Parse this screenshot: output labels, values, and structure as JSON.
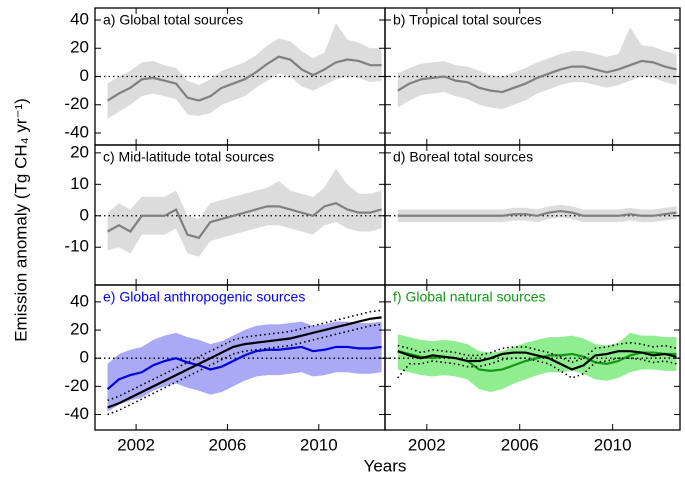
{
  "xlabel": "Years",
  "ylabel": "Emission anomaly (Tg CH₄ yr⁻¹)",
  "chart_data": [
    {
      "type": "line",
      "title": "a) Global total sources",
      "title_color": "#000000",
      "zero_line": true,
      "show_ytick_labels": true,
      "show_xtick_labels": false,
      "xlim": [
        2000.2,
        2012.9
      ],
      "xticks": [
        2002,
        2006,
        2010
      ],
      "ylim": [
        -48.5,
        48.5
      ],
      "yticks": [
        -40,
        -20,
        0,
        20,
        40
      ],
      "x": [
        2000.75,
        2001.25,
        2001.75,
        2002.25,
        2002.75,
        2003.25,
        2003.75,
        2004.25,
        2004.75,
        2005.25,
        2005.75,
        2006.25,
        2006.75,
        2007.25,
        2007.75,
        2008.25,
        2008.75,
        2009.25,
        2009.75,
        2010.25,
        2010.75,
        2011.25,
        2011.75,
        2012.25,
        2012.75
      ],
      "series": [
        {
          "color": "#808080",
          "band_color": "#dcdcdc",
          "values": [
            -17,
            -12,
            -8,
            -2,
            -1,
            -3,
            -5,
            -15,
            -17,
            -14,
            -8,
            -5,
            -2,
            3,
            9,
            14,
            12,
            5,
            1,
            5,
            10,
            12,
            11,
            8,
            8
          ],
          "lower": [
            -30,
            -25,
            -20,
            -14,
            -12,
            -14,
            -16,
            -27,
            -28,
            -26,
            -20,
            -17,
            -14,
            -8,
            -3,
            2,
            0,
            -7,
            -10,
            -6,
            -2,
            0,
            -1,
            -4,
            -3
          ],
          "upper": [
            -5,
            0,
            4,
            10,
            11,
            8,
            6,
            -3,
            -6,
            -2,
            4,
            7,
            10,
            15,
            22,
            27,
            25,
            18,
            13,
            17,
            38,
            26,
            24,
            20,
            20
          ]
        }
      ]
    },
    {
      "type": "line",
      "title": "b) Tropical total sources",
      "title_color": "#000000",
      "zero_line": true,
      "show_ytick_labels": false,
      "show_xtick_labels": false,
      "xlim": [
        2000.2,
        2012.9
      ],
      "xticks": [
        2002,
        2006,
        2010
      ],
      "ylim": [
        -48.5,
        48.5
      ],
      "yticks": [
        -40,
        -20,
        0,
        20,
        40
      ],
      "x": [
        2000.75,
        2001.25,
        2001.75,
        2002.25,
        2002.75,
        2003.25,
        2003.75,
        2004.25,
        2004.75,
        2005.25,
        2005.75,
        2006.25,
        2006.75,
        2007.25,
        2007.75,
        2008.25,
        2008.75,
        2009.25,
        2009.75,
        2010.25,
        2010.75,
        2011.25,
        2011.75,
        2012.25,
        2012.75
      ],
      "series": [
        {
          "color": "#808080",
          "band_color": "#dcdcdc",
          "values": [
            -10,
            -5,
            -2,
            -1,
            0,
            -3,
            -4,
            -8,
            -10,
            -11,
            -8,
            -5,
            -1,
            2,
            5,
            7,
            7,
            5,
            3,
            5,
            8,
            11,
            10,
            7,
            5
          ],
          "lower": [
            -22,
            -17,
            -13,
            -12,
            -11,
            -14,
            -16,
            -20,
            -22,
            -23,
            -20,
            -17,
            -12,
            -9,
            -6,
            -4,
            -4,
            -6,
            -8,
            -6,
            -3,
            0,
            -1,
            -4,
            -6
          ],
          "upper": [
            2,
            6,
            9,
            10,
            11,
            8,
            7,
            4,
            1,
            0,
            3,
            6,
            10,
            13,
            16,
            18,
            18,
            16,
            14,
            16,
            35,
            22,
            21,
            18,
            16
          ]
        }
      ]
    },
    {
      "type": "line",
      "title": "c) Mid-latitude total sources",
      "title_color": "#000000",
      "zero_line": true,
      "show_ytick_labels": true,
      "show_xtick_labels": false,
      "xlim": [
        2000.2,
        2012.9
      ],
      "xticks": [
        2002,
        2006,
        2010
      ],
      "ylim": [
        -22,
        22.5
      ],
      "yticks": [
        -10,
        0,
        10,
        20
      ],
      "x": [
        2000.75,
        2001.25,
        2001.75,
        2002.25,
        2002.75,
        2003.25,
        2003.75,
        2004.25,
        2004.75,
        2005.25,
        2005.75,
        2006.25,
        2006.75,
        2007.25,
        2007.75,
        2008.25,
        2008.75,
        2009.25,
        2009.75,
        2010.25,
        2010.75,
        2011.25,
        2011.75,
        2012.25,
        2012.75
      ],
      "series": [
        {
          "color": "#808080",
          "band_color": "#dcdcdc",
          "values": [
            -5,
            -3,
            -5,
            0,
            0,
            0,
            2,
            -6,
            -7,
            -2,
            -1,
            0,
            1,
            2,
            3,
            3,
            2,
            1,
            0,
            3,
            4,
            2,
            1,
            1,
            2
          ],
          "lower": [
            -11,
            -10,
            -12,
            -6,
            -6,
            -6,
            -4,
            -12,
            -13,
            -8,
            -7,
            -6,
            -5,
            -4,
            -3,
            -3,
            -4,
            -5,
            -6,
            -3,
            -2,
            -4,
            -5,
            -5,
            -4
          ],
          "upper": [
            1,
            4,
            2,
            6,
            6,
            6,
            8,
            0,
            -1,
            4,
            5,
            6,
            7,
            8,
            9,
            11,
            8,
            7,
            6,
            9,
            15,
            10,
            7,
            7,
            8
          ]
        }
      ]
    },
    {
      "type": "line",
      "title": "d) Boreal total sources",
      "title_color": "#000000",
      "zero_line": true,
      "show_ytick_labels": false,
      "show_xtick_labels": false,
      "xlim": [
        2000.2,
        2012.9
      ],
      "xticks": [
        2002,
        2006,
        2010
      ],
      "ylim": [
        -22,
        22.5
      ],
      "yticks": [
        -10,
        0,
        10,
        20
      ],
      "x": [
        2000.75,
        2001.25,
        2001.75,
        2002.25,
        2002.75,
        2003.25,
        2003.75,
        2004.25,
        2004.75,
        2005.25,
        2005.75,
        2006.25,
        2006.75,
        2007.25,
        2007.75,
        2008.25,
        2008.75,
        2009.25,
        2009.75,
        2010.25,
        2010.75,
        2011.25,
        2011.75,
        2012.25,
        2012.75
      ],
      "series": [
        {
          "color": "#808080",
          "band_color": "#dcdcdc",
          "values": [
            0,
            0,
            0,
            0,
            0,
            0,
            0,
            0,
            0,
            0,
            0.5,
            0.5,
            0,
            1,
            1.5,
            1,
            0,
            0,
            0,
            0,
            0.5,
            0,
            0,
            0.5,
            1
          ],
          "lower": [
            -2,
            -2,
            -2,
            -2,
            -2,
            -2,
            -2,
            -2,
            -2,
            -2,
            -1.5,
            -1.5,
            -2,
            -1,
            -0.5,
            -1,
            -2,
            -2,
            -2,
            -2,
            -1.5,
            -2,
            -2,
            -1.5,
            -1
          ],
          "upper": [
            2,
            2,
            2,
            2,
            2,
            2,
            2,
            2,
            2,
            2,
            2.5,
            2.5,
            2,
            3,
            3.5,
            3,
            2,
            2,
            2,
            2,
            2.5,
            2,
            2,
            2.5,
            3
          ]
        }
      ]
    },
    {
      "type": "line",
      "title": "e) Global anthropogenic sources",
      "title_color": "#0000ee",
      "zero_line": true,
      "show_ytick_labels": true,
      "show_xtick_labels": true,
      "xlim": [
        2000.2,
        2012.9
      ],
      "xticks": [
        2002,
        2006,
        2010
      ],
      "ylim": [
        -51,
        52
      ],
      "yticks": [
        -40,
        -20,
        0,
        20,
        40
      ],
      "x": [
        2000.75,
        2001.25,
        2001.75,
        2002.25,
        2002.75,
        2003.25,
        2003.75,
        2004.25,
        2004.75,
        2005.25,
        2005.75,
        2006.25,
        2006.75,
        2007.25,
        2007.75,
        2008.25,
        2008.75,
        2009.25,
        2009.75,
        2010.25,
        2010.75,
        2011.25,
        2011.75,
        2012.25,
        2012.75
      ],
      "series": [
        {
          "color": "#0000dd",
          "band_color": "#a9a9f5",
          "values": [
            -22,
            -15,
            -12,
            -10,
            -5,
            -2,
            0,
            -3,
            -5,
            -8,
            -6,
            -2,
            2,
            5,
            6,
            6,
            7,
            8,
            5,
            6,
            8,
            8,
            7,
            7,
            8
          ],
          "lower": [
            -38,
            -33,
            -30,
            -28,
            -23,
            -20,
            -18,
            -21,
            -23,
            -26,
            -24,
            -20,
            -16,
            -13,
            -12,
            -12,
            -11,
            -10,
            -13,
            -12,
            -10,
            -10,
            -11,
            -11,
            -10
          ],
          "upper": [
            -4,
            3,
            6,
            8,
            13,
            16,
            18,
            15,
            13,
            10,
            12,
            16,
            20,
            23,
            24,
            24,
            25,
            26,
            23,
            24,
            26,
            26,
            25,
            25,
            26
          ]
        },
        {
          "color": "#000000",
          "values": [
            -35,
            -32,
            -28,
            -24,
            -20,
            -16,
            -12,
            -8,
            -4,
            0,
            4,
            8,
            10,
            11,
            12,
            13,
            14,
            16,
            18,
            20,
            22,
            24,
            26,
            28,
            29
          ]
        },
        {
          "color": "#000000",
          "dash": true,
          "values": [
            -40,
            -37,
            -33,
            -29,
            -25,
            -21,
            -17,
            -13,
            -9,
            -5,
            -1,
            3,
            5,
            6,
            7,
            8,
            9,
            11,
            13,
            15,
            17,
            19,
            21,
            23,
            24
          ]
        },
        {
          "color": "#000000",
          "dash": true,
          "values": [
            -30,
            -27,
            -23,
            -19,
            -15,
            -11,
            -7,
            -3,
            1,
            5,
            9,
            13,
            15,
            16,
            17,
            18,
            19,
            21,
            23,
            25,
            27,
            29,
            31,
            33,
            34
          ]
        }
      ]
    },
    {
      "type": "line",
      "title": "f) Global natural sources",
      "title_color": "#119911",
      "zero_line": true,
      "show_ytick_labels": false,
      "show_xtick_labels": true,
      "xlim": [
        2000.2,
        2012.9
      ],
      "xticks": [
        2002,
        2006,
        2010
      ],
      "ylim": [
        -51,
        52
      ],
      "yticks": [
        -40,
        -20,
        0,
        20,
        40
      ],
      "x": [
        2000.75,
        2001.25,
        2001.75,
        2002.25,
        2002.75,
        2003.25,
        2003.75,
        2004.25,
        2004.75,
        2005.25,
        2005.75,
        2006.25,
        2006.75,
        2007.25,
        2007.75,
        2008.25,
        2008.75,
        2009.25,
        2009.75,
        2010.25,
        2010.75,
        2011.25,
        2011.75,
        2012.25,
        2012.75
      ],
      "series": [
        {
          "color": "#119911",
          "band_color": "#90ee90",
          "values": [
            5,
            3,
            1,
            0,
            1,
            0,
            -2,
            -8,
            -9,
            -8,
            -5,
            -2,
            0,
            2,
            2,
            3,
            1,
            -3,
            -4,
            -2,
            2,
            4,
            4,
            3,
            3
          ],
          "lower": [
            -8,
            -10,
            -12,
            -13,
            -12,
            -13,
            -15,
            -22,
            -24,
            -22,
            -18,
            -15,
            -12,
            -10,
            -10,
            -9,
            -11,
            -15,
            -16,
            -14,
            -10,
            -8,
            -8,
            -9,
            -9
          ],
          "upper": [
            17,
            15,
            13,
            12,
            13,
            12,
            10,
            5,
            4,
            5,
            8,
            11,
            13,
            15,
            15,
            16,
            14,
            10,
            9,
            11,
            18,
            16,
            16,
            15,
            15
          ]
        },
        {
          "color": "#000000",
          "values": [
            5,
            2,
            0,
            2,
            1,
            0,
            -2,
            -2,
            0,
            3,
            4,
            4,
            2,
            0,
            -4,
            -8,
            -5,
            2,
            3,
            5,
            5,
            4,
            2,
            3,
            1
          ]
        },
        {
          "color": "#000000",
          "dash": true,
          "values": [
            -14,
            -4,
            -4,
            -2,
            -3,
            -4,
            -6,
            -6,
            -4,
            -1,
            0,
            0,
            -2,
            -4,
            -9,
            -14,
            -11,
            -3,
            -2,
            0,
            0,
            -1,
            -3,
            -2,
            -4
          ]
        },
        {
          "color": "#000000",
          "dash": true,
          "values": [
            9,
            7,
            4,
            6,
            5,
            4,
            2,
            2,
            4,
            7,
            8,
            8,
            6,
            4,
            1,
            -3,
            0,
            7,
            8,
            10,
            11,
            10,
            8,
            9,
            7
          ]
        }
      ]
    }
  ]
}
